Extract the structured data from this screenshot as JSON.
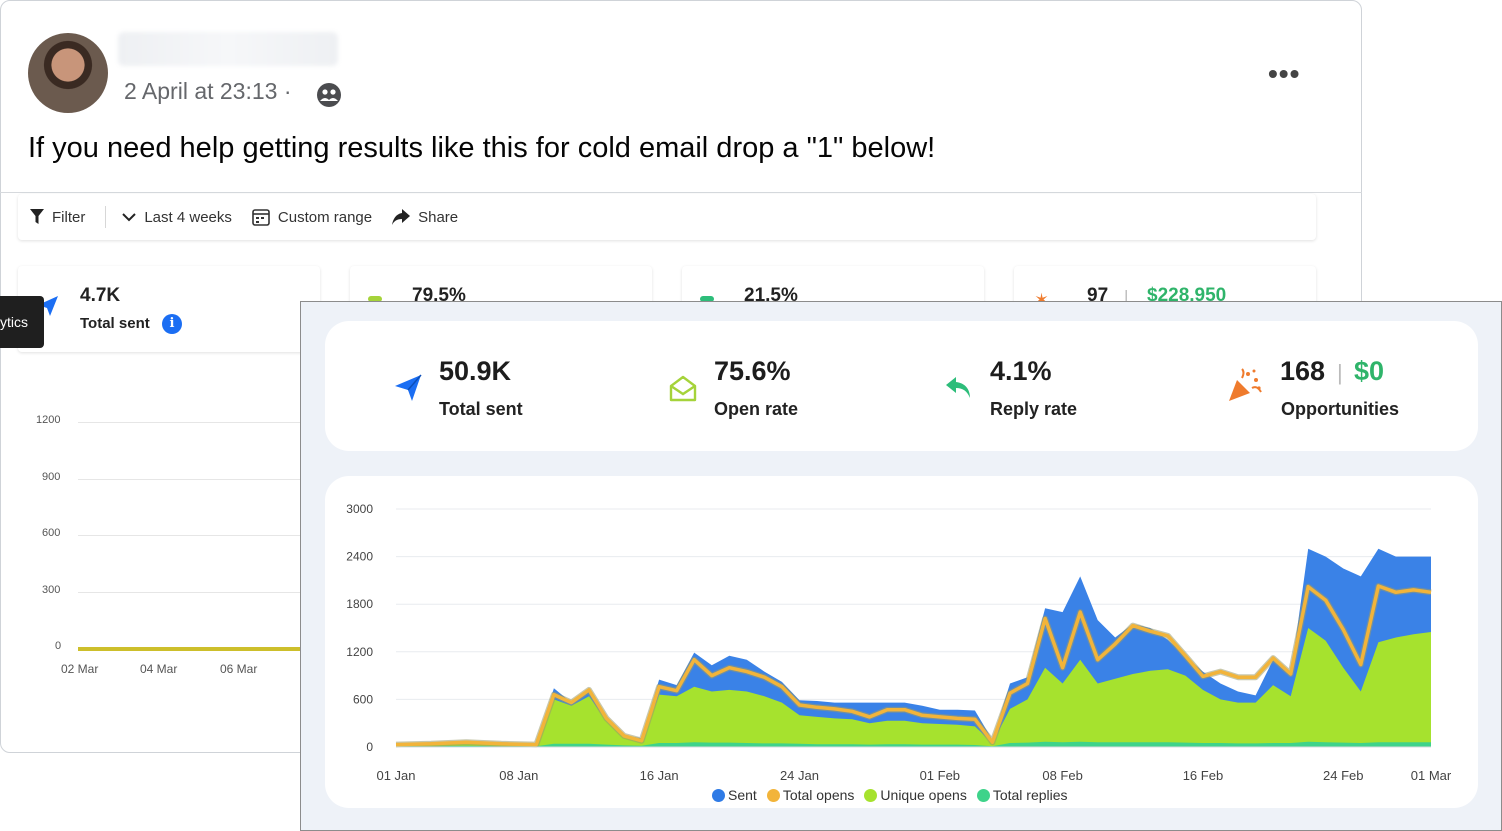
{
  "post": {
    "time": "2 April at 23:13 ·",
    "more": "•••",
    "text": "If you need help getting results like this for cold email drop a \"1\" below!"
  },
  "old_dashboard": {
    "toolbar": {
      "filter": "Filter",
      "period": "Last 4 weeks",
      "custom_range": "Custom range",
      "share": "Share"
    },
    "tooltip": "ytics",
    "stats": {
      "sent_value": "4.7K",
      "sent_label": "Total sent",
      "info": "i",
      "open_value": "79.5%",
      "reply_value": "21.5%",
      "opp_value": "97",
      "opp_sep": "|",
      "opp_money": "$228,950"
    },
    "y_ticks": [
      "1200",
      "900",
      "600",
      "300",
      "0"
    ],
    "x_ticks": [
      "02 Mar",
      "04 Mar",
      "06 Mar"
    ]
  },
  "analytics": {
    "stats": [
      {
        "value": "50.9K",
        "label": "Total sent",
        "icon": "paper-plane-icon",
        "color": "#1b6ef3"
      },
      {
        "value": "75.6%",
        "label": "Open rate",
        "icon": "envelope-open-icon",
        "color": "#a5d33a"
      },
      {
        "value": "4.1%",
        "label": "Reply rate",
        "icon": "reply-arrow-icon",
        "color": "#2dbd7a"
      },
      {
        "value": "168",
        "label": "Opportunities",
        "icon": "party-popper-icon",
        "color": "#ef7b2d"
      }
    ],
    "opp_sep": "|",
    "opp_money": "$0",
    "legend": [
      {
        "label": "Sent",
        "color": "#2f7be6"
      },
      {
        "label": "Total opens",
        "color": "#f2b43a"
      },
      {
        "label": "Unique opens",
        "color": "#a6e22e"
      },
      {
        "label": "Total replies",
        "color": "#3ed38a"
      }
    ]
  },
  "chart_data": {
    "type": "area",
    "title": "",
    "xlabel": "",
    "ylabel": "",
    "ylim": [
      0,
      3000
    ],
    "y_ticks": [
      0,
      600,
      1200,
      1800,
      2400,
      3000
    ],
    "x_tick_labels": [
      "01 Jan",
      "08 Jan",
      "16 Jan",
      "24 Jan",
      "01 Feb",
      "08 Feb",
      "16 Feb",
      "24 Feb",
      "01 Mar"
    ],
    "x_tick_days": [
      0,
      7,
      15,
      23,
      31,
      38,
      46,
      54,
      59
    ],
    "series": [
      {
        "name": "Sent",
        "color": "#2f7be6",
        "x": [
          0,
          2,
          4,
          6,
          8,
          9,
          10,
          11,
          12,
          13,
          14,
          15,
          16,
          17,
          18,
          19,
          20,
          21,
          22,
          23,
          24,
          25,
          26,
          27,
          28,
          29,
          30,
          31,
          32,
          33,
          34,
          35,
          36,
          37,
          38,
          39,
          40,
          41,
          42,
          43,
          44,
          45,
          46,
          47,
          48,
          49,
          50,
          51,
          52,
          53,
          54,
          55,
          56,
          57,
          58,
          59
        ],
        "values": [
          40,
          60,
          80,
          60,
          40,
          740,
          560,
          720,
          380,
          150,
          110,
          850,
          780,
          1190,
          1030,
          1150,
          1100,
          950,
          820,
          590,
          580,
          560,
          560,
          560,
          560,
          560,
          520,
          470,
          470,
          460,
          90,
          800,
          880,
          1750,
          1700,
          2150,
          1600,
          1380,
          1550,
          1500,
          1350,
          1150,
          950,
          800,
          700,
          650,
          1100,
          900,
          2500,
          2400,
          2250,
          2150,
          2500,
          2400,
          2400,
          2400
        ]
      },
      {
        "name": "Total opens",
        "color": "#f2b43a",
        "x": [
          0,
          2,
          4,
          6,
          8,
          9,
          10,
          11,
          12,
          13,
          14,
          15,
          16,
          17,
          18,
          19,
          20,
          21,
          22,
          23,
          24,
          25,
          26,
          27,
          28,
          29,
          30,
          31,
          32,
          33,
          34,
          35,
          36,
          37,
          38,
          39,
          40,
          41,
          42,
          43,
          44,
          45,
          46,
          47,
          48,
          49,
          50,
          51,
          52,
          53,
          54,
          55,
          56,
          57,
          58,
          59
        ],
        "values": [
          30,
          40,
          60,
          40,
          30,
          660,
          560,
          720,
          360,
          140,
          80,
          760,
          710,
          1100,
          900,
          1000,
          950,
          880,
          760,
          530,
          500,
          480,
          450,
          380,
          470,
          470,
          400,
          380,
          360,
          350,
          60,
          680,
          800,
          1620,
          1000,
          1700,
          1100,
          1300,
          1530,
          1460,
          1400,
          1150,
          890,
          950,
          880,
          880,
          1120,
          920,
          2020,
          1850,
          1480,
          1040,
          2030,
          1950,
          1980,
          1950
        ]
      },
      {
        "name": "Unique opens",
        "color": "#a6e22e",
        "x": [
          0,
          2,
          4,
          6,
          8,
          9,
          10,
          11,
          12,
          13,
          14,
          15,
          16,
          17,
          18,
          19,
          20,
          21,
          22,
          23,
          24,
          25,
          26,
          27,
          28,
          29,
          30,
          31,
          32,
          33,
          34,
          35,
          36,
          37,
          38,
          39,
          40,
          41,
          42,
          43,
          44,
          45,
          46,
          47,
          48,
          49,
          50,
          51,
          52,
          53,
          54,
          55,
          56,
          57,
          58,
          59
        ],
        "values": [
          20,
          30,
          40,
          30,
          20,
          600,
          520,
          640,
          330,
          130,
          70,
          660,
          640,
          760,
          700,
          720,
          700,
          640,
          560,
          400,
          380,
          360,
          350,
          300,
          330,
          330,
          300,
          290,
          280,
          260,
          50,
          480,
          600,
          1000,
          800,
          1100,
          800,
          860,
          920,
          960,
          980,
          900,
          720,
          600,
          560,
          560,
          780,
          640,
          1500,
          1340,
          1000,
          700,
          1320,
          1380,
          1420,
          1450
        ]
      },
      {
        "name": "Total replies",
        "color": "#3ed38a",
        "x": [
          0,
          2,
          4,
          6,
          8,
          9,
          10,
          11,
          12,
          13,
          14,
          15,
          16,
          17,
          18,
          19,
          20,
          21,
          22,
          23,
          24,
          25,
          26,
          27,
          28,
          29,
          30,
          31,
          32,
          33,
          34,
          35,
          36,
          37,
          38,
          39,
          40,
          41,
          42,
          43,
          44,
          45,
          46,
          47,
          48,
          49,
          50,
          51,
          52,
          53,
          54,
          55,
          56,
          57,
          58,
          59
        ],
        "values": [
          10,
          10,
          15,
          10,
          10,
          40,
          40,
          40,
          30,
          20,
          15,
          50,
          50,
          60,
          55,
          55,
          50,
          45,
          45,
          40,
          35,
          35,
          35,
          30,
          35,
          35,
          30,
          30,
          30,
          25,
          10,
          50,
          55,
          65,
          60,
          65,
          60,
          60,
          60,
          60,
          60,
          55,
          50,
          50,
          45,
          45,
          50,
          50,
          65,
          60,
          55,
          50,
          60,
          60,
          60,
          60
        ]
      }
    ]
  }
}
